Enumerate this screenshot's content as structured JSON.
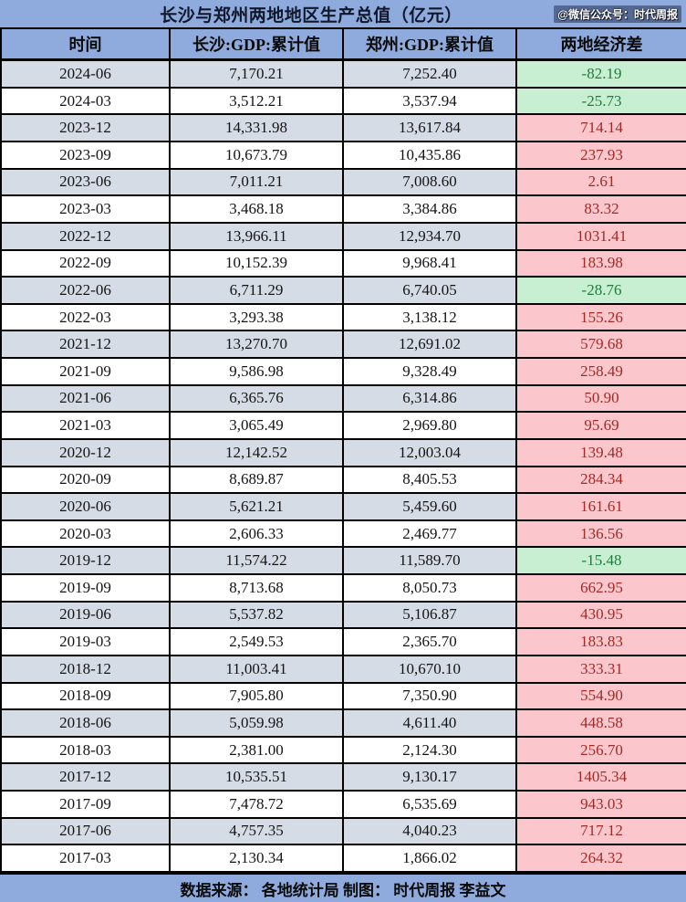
{
  "page": {
    "title": "长沙与郑州两地地区生产总值（亿元）",
    "watermark": "@微信公众号：时代周报",
    "footer": "数据来源： 各地统计局 制图： 时代周报 李益文"
  },
  "colors": {
    "band_blue": "#8FAADC",
    "stripe_blue_gray": "#D6DCE5",
    "diff_positive_bg": "#FBC7CD",
    "diff_positive_text": "#A32A24",
    "diff_negative_bg": "#C8EFD2",
    "diff_negative_text": "#1E7D3C",
    "border": "#000000"
  },
  "chart_data": {
    "type": "table",
    "title": "长沙与郑州两地地区生产总值（亿元）",
    "columns": [
      "时间",
      "长沙:GDP:累计值",
      "郑州:GDP:累计值",
      "两地经济差"
    ],
    "rows": [
      {
        "date": "2024-06",
        "changsha": "7,170.21",
        "zhengzhou": "7,252.40",
        "diff": "-82.19"
      },
      {
        "date": "2024-03",
        "changsha": "3,512.21",
        "zhengzhou": "3,537.94",
        "diff": "-25.73"
      },
      {
        "date": "2023-12",
        "changsha": "14,331.98",
        "zhengzhou": "13,617.84",
        "diff": "714.14"
      },
      {
        "date": "2023-09",
        "changsha": "10,673.79",
        "zhengzhou": "10,435.86",
        "diff": "237.93"
      },
      {
        "date": "2023-06",
        "changsha": "7,011.21",
        "zhengzhou": "7,008.60",
        "diff": "2.61"
      },
      {
        "date": "2023-03",
        "changsha": "3,468.18",
        "zhengzhou": "3,384.86",
        "diff": "83.32"
      },
      {
        "date": "2022-12",
        "changsha": "13,966.11",
        "zhengzhou": "12,934.70",
        "diff": "1031.41"
      },
      {
        "date": "2022-09",
        "changsha": "10,152.39",
        "zhengzhou": "9,968.41",
        "diff": "183.98"
      },
      {
        "date": "2022-06",
        "changsha": "6,711.29",
        "zhengzhou": "6,740.05",
        "diff": "-28.76"
      },
      {
        "date": "2022-03",
        "changsha": "3,293.38",
        "zhengzhou": "3,138.12",
        "diff": "155.26"
      },
      {
        "date": "2021-12",
        "changsha": "13,270.70",
        "zhengzhou": "12,691.02",
        "diff": "579.68"
      },
      {
        "date": "2021-09",
        "changsha": "9,586.98",
        "zhengzhou": "9,328.49",
        "diff": "258.49"
      },
      {
        "date": "2021-06",
        "changsha": "6,365.76",
        "zhengzhou": "6,314.86",
        "diff": "50.90"
      },
      {
        "date": "2021-03",
        "changsha": "3,065.49",
        "zhengzhou": "2,969.80",
        "diff": "95.69"
      },
      {
        "date": "2020-12",
        "changsha": "12,142.52",
        "zhengzhou": "12,003.04",
        "diff": "139.48"
      },
      {
        "date": "2020-09",
        "changsha": "8,689.87",
        "zhengzhou": "8,405.53",
        "diff": "284.34"
      },
      {
        "date": "2020-06",
        "changsha": "5,621.21",
        "zhengzhou": "5,459.60",
        "diff": "161.61"
      },
      {
        "date": "2020-03",
        "changsha": "2,606.33",
        "zhengzhou": "2,469.77",
        "diff": "136.56"
      },
      {
        "date": "2019-12",
        "changsha": "11,574.22",
        "zhengzhou": "11,589.70",
        "diff": "-15.48"
      },
      {
        "date": "2019-09",
        "changsha": "8,713.68",
        "zhengzhou": "8,050.73",
        "diff": "662.95"
      },
      {
        "date": "2019-06",
        "changsha": "5,537.82",
        "zhengzhou": "5,106.87",
        "diff": "430.95"
      },
      {
        "date": "2019-03",
        "changsha": "2,549.53",
        "zhengzhou": "2,365.70",
        "diff": "183.83"
      },
      {
        "date": "2018-12",
        "changsha": "11,003.41",
        "zhengzhou": "10,670.10",
        "diff": "333.31"
      },
      {
        "date": "2018-09",
        "changsha": "7,905.80",
        "zhengzhou": "7,350.90",
        "diff": "554.90"
      },
      {
        "date": "2018-06",
        "changsha": "5,059.98",
        "zhengzhou": "4,611.40",
        "diff": "448.58"
      },
      {
        "date": "2018-03",
        "changsha": "2,381.00",
        "zhengzhou": "2,124.30",
        "diff": "256.70"
      },
      {
        "date": "2017-12",
        "changsha": "10,535.51",
        "zhengzhou": "9,130.17",
        "diff": "1405.34"
      },
      {
        "date": "2017-09",
        "changsha": "7,478.72",
        "zhengzhou": "6,535.69",
        "diff": "943.03"
      },
      {
        "date": "2017-06",
        "changsha": "4,757.35",
        "zhengzhou": "4,040.23",
        "diff": "717.12"
      },
      {
        "date": "2017-03",
        "changsha": "2,130.34",
        "zhengzhou": "1,866.02",
        "diff": "264.32"
      }
    ]
  }
}
